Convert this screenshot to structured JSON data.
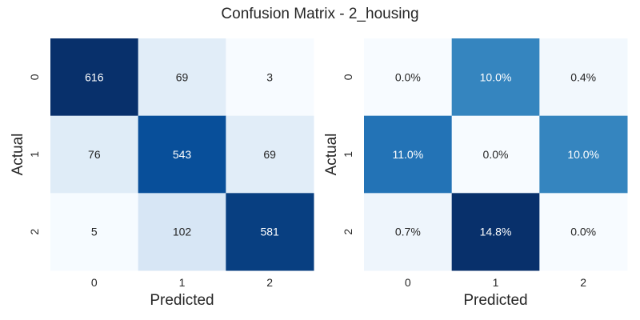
{
  "title": "Confusion Matrix - 2_housing",
  "chart_data": [
    {
      "type": "heatmap",
      "xlabel": "Predicted",
      "ylabel": "Actual",
      "x_categories": [
        "0",
        "1",
        "2"
      ],
      "y_categories": [
        "0",
        "1",
        "2"
      ],
      "values": [
        [
          616,
          69,
          3
        ],
        [
          76,
          543,
          69
        ],
        [
          5,
          102,
          581
        ]
      ],
      "cell_labels": [
        [
          "616",
          "69",
          "3"
        ],
        [
          "76",
          "543",
          "69"
        ],
        [
          "5",
          "102",
          "581"
        ]
      ],
      "colormap": "Blues",
      "vmin": 3,
      "vmax": 616
    },
    {
      "type": "heatmap",
      "xlabel": "Predicted",
      "ylabel": "Actual",
      "x_categories": [
        "0",
        "1",
        "2"
      ],
      "y_categories": [
        "0",
        "1",
        "2"
      ],
      "values": [
        [
          0.0,
          10.0,
          0.4
        ],
        [
          11.0,
          0.0,
          10.0
        ],
        [
          0.7,
          14.8,
          0.0
        ]
      ],
      "cell_labels": [
        [
          "0.0%",
          "10.0%",
          "0.4%"
        ],
        [
          "11.0%",
          "0.0%",
          "10.0%"
        ],
        [
          "0.7%",
          "14.8%",
          "0.0%"
        ]
      ],
      "colormap": "Blues",
      "vmin": 0.0,
      "vmax": 14.8
    }
  ]
}
